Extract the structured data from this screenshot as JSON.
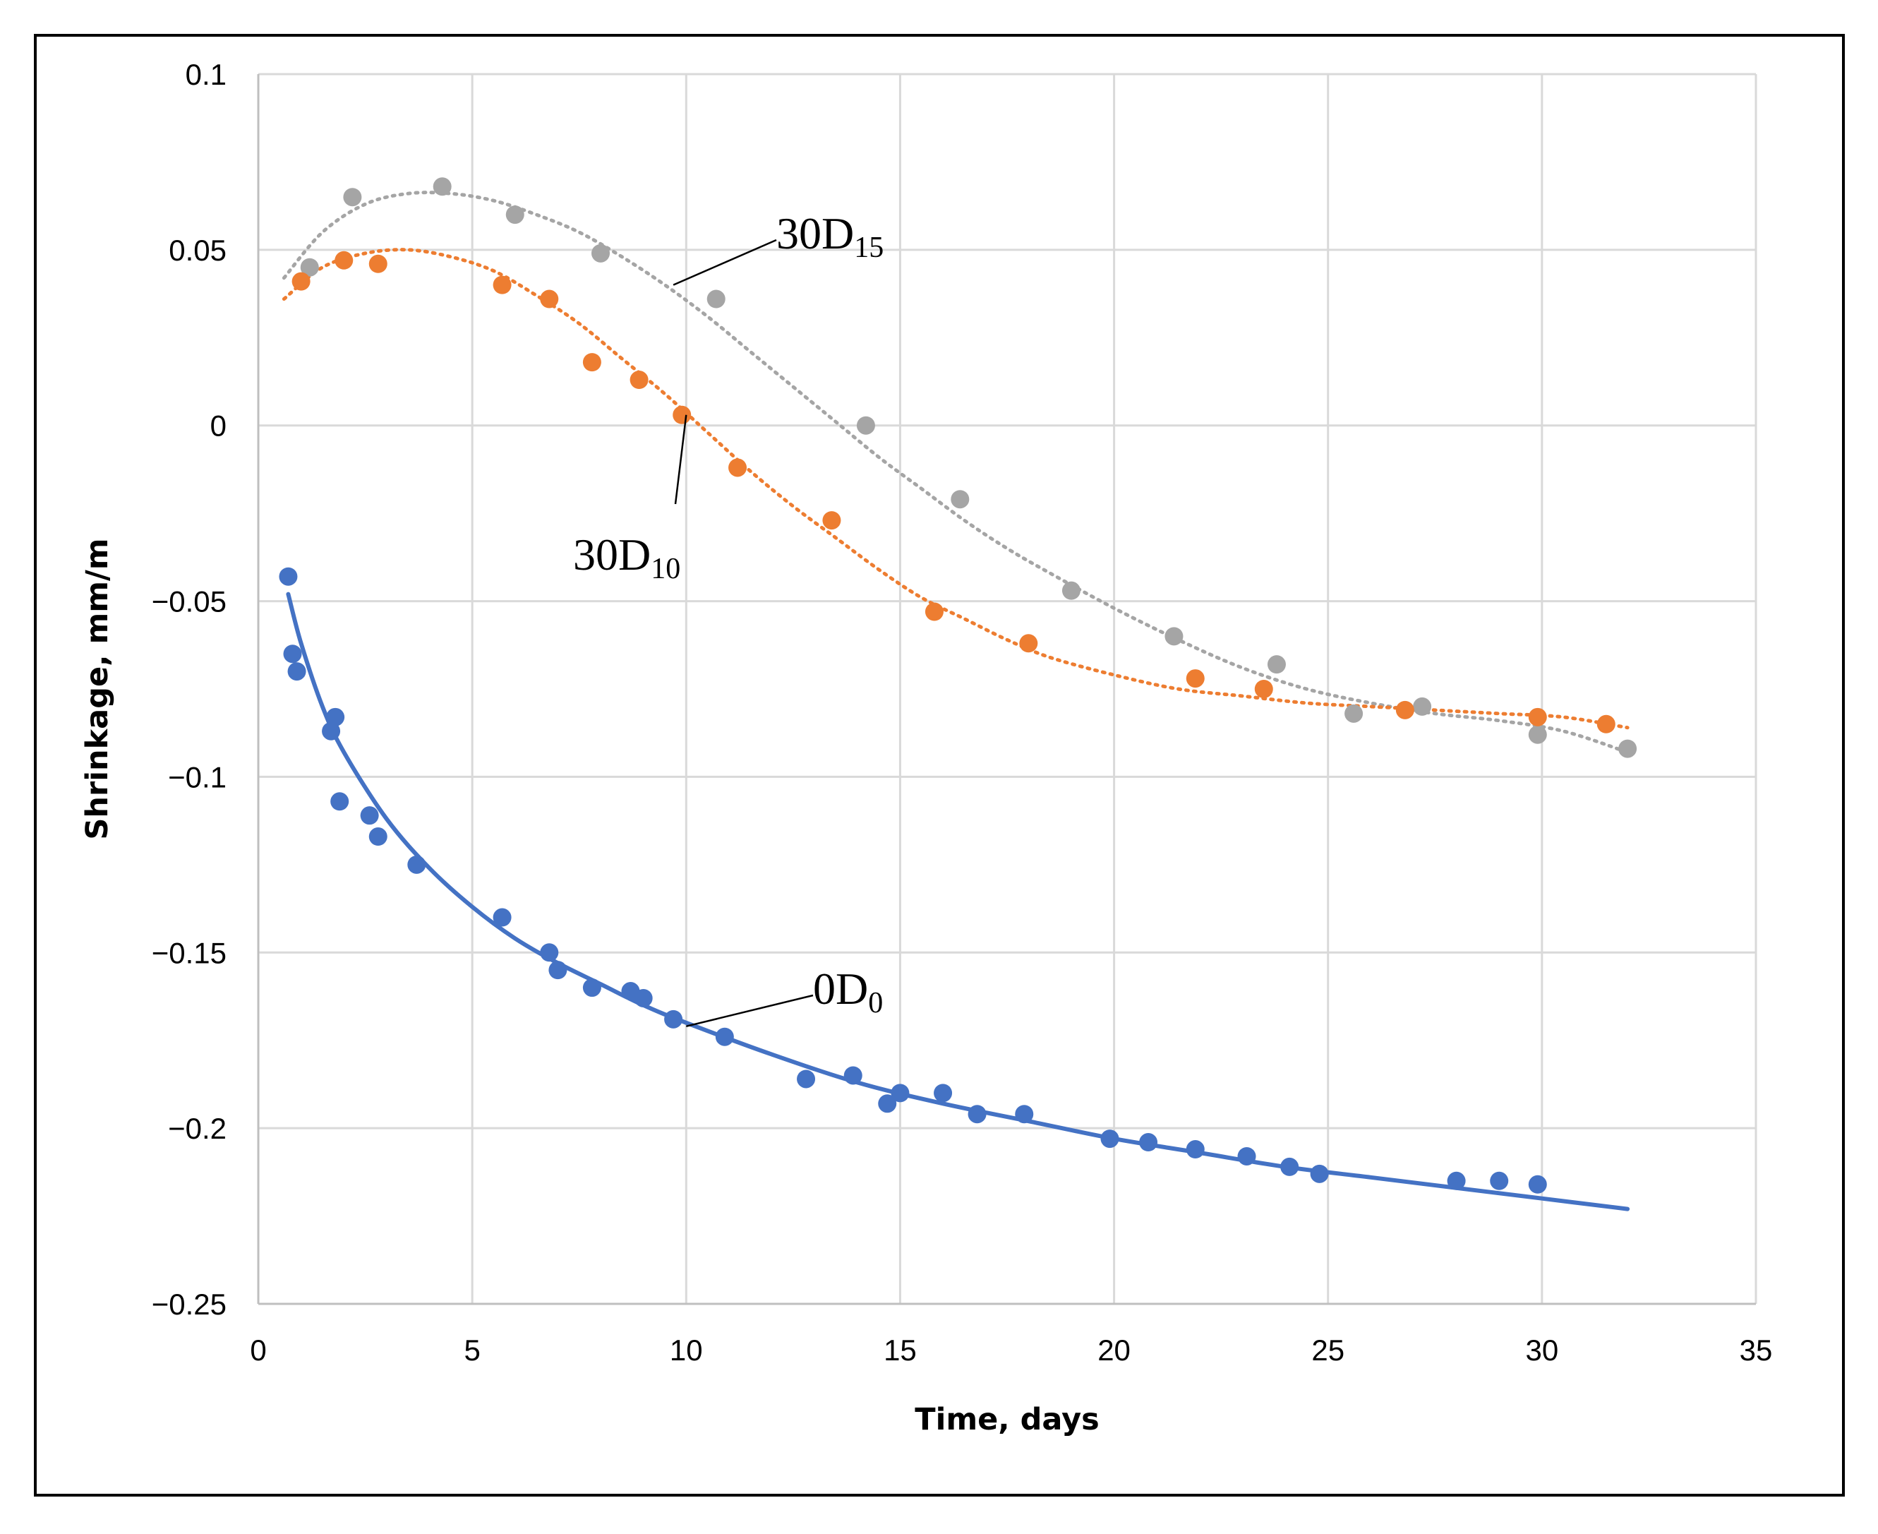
{
  "chart_data": {
    "type": "scatter",
    "title": "",
    "xlabel": "Time, days",
    "ylabel": "Shrinkage, mm/m",
    "xlim": [
      0,
      35
    ],
    "ylim": [
      -0.25,
      0.1
    ],
    "x_ticks": [
      {
        "value": 0,
        "label": "0"
      },
      {
        "value": 5,
        "label": "5"
      },
      {
        "value": 10,
        "label": "10"
      },
      {
        "value": 15,
        "label": "15"
      },
      {
        "value": 20,
        "label": "20"
      },
      {
        "value": 25,
        "label": "25"
      },
      {
        "value": 30,
        "label": "30"
      },
      {
        "value": 35,
        "label": "35"
      }
    ],
    "y_ticks": [
      {
        "value": 0.1,
        "label": "0.1"
      },
      {
        "value": 0.05,
        "label": "0.05"
      },
      {
        "value": 0,
        "label": "0"
      },
      {
        "value": -0.05,
        "label": "−0.05"
      },
      {
        "value": -0.1,
        "label": "−0.1"
      },
      {
        "value": -0.15,
        "label": "−0.15"
      },
      {
        "value": -0.2,
        "label": "−0.2"
      },
      {
        "value": -0.25,
        "label": "−0.25"
      }
    ],
    "grid": true,
    "legend": "none",
    "series": [
      {
        "name": "0D0",
        "label_main": "0D",
        "label_sub": "0",
        "color": "#4472c4",
        "trendline": "solid",
        "x": [
          0.7,
          0.8,
          0.9,
          1.7,
          1.8,
          1.9,
          2.6,
          2.8,
          3.7,
          5.7,
          6.8,
          7.0,
          7.8,
          8.7,
          9.0,
          9.7,
          10.9,
          12.8,
          13.9,
          14.7,
          15.0,
          16.0,
          16.8,
          17.9,
          19.9,
          20.8,
          21.9,
          23.1,
          24.1,
          24.8,
          28.0,
          29.0,
          29.9
        ],
        "y": [
          -0.043,
          -0.065,
          -0.07,
          -0.087,
          -0.083,
          -0.107,
          -0.111,
          -0.117,
          -0.125,
          -0.14,
          -0.15,
          -0.155,
          -0.16,
          -0.161,
          -0.163,
          -0.169,
          -0.174,
          -0.186,
          -0.185,
          -0.193,
          -0.19,
          -0.19,
          -0.196,
          -0.196,
          -0.203,
          -0.204,
          -0.206,
          -0.208,
          -0.211,
          -0.213,
          -0.215,
          -0.215,
          -0.216
        ],
        "trend_x": [
          0.7,
          1.0,
          1.5,
          2.0,
          3.0,
          4.0,
          5.0,
          6.0,
          7.0,
          8.0,
          9.0,
          10.0,
          12.0,
          14.0,
          16.0,
          18.0,
          20.0,
          22.0,
          24.0,
          26.0,
          28.0,
          30.0,
          32.0
        ],
        "trend_y": [
          -0.048,
          -0.062,
          -0.08,
          -0.093,
          -0.112,
          -0.126,
          -0.137,
          -0.146,
          -0.153,
          -0.159,
          -0.165,
          -0.17,
          -0.179,
          -0.187,
          -0.193,
          -0.198,
          -0.203,
          -0.207,
          -0.211,
          -0.214,
          -0.217,
          -0.22,
          -0.223
        ]
      },
      {
        "name": "30D10",
        "label_main": "30D",
        "label_sub": "10",
        "color": "#ed7d31",
        "trendline": "dotted",
        "x": [
          1.0,
          2.0,
          2.8,
          5.7,
          6.8,
          7.8,
          8.9,
          9.9,
          11.2,
          13.4,
          15.8,
          18.0,
          21.9,
          23.5,
          26.8,
          29.9,
          31.5
        ],
        "y": [
          0.041,
          0.047,
          0.046,
          0.04,
          0.036,
          0.018,
          0.013,
          0.003,
          -0.012,
          -0.027,
          -0.053,
          -0.062,
          -0.072,
          -0.075,
          -0.081,
          -0.083,
          -0.085
        ],
        "trend_x": [
          0.6,
          1.5,
          2.5,
          3.5,
          4.5,
          5.5,
          6.5,
          7.5,
          8.5,
          9.5,
          10.5,
          11.5,
          12.5,
          13.5,
          14.5,
          15.5,
          16.5,
          17.5,
          18.5,
          20.0,
          21.5,
          23.0,
          24.5,
          26.0,
          27.5,
          29.0,
          30.5,
          32.0
        ],
        "trend_y": [
          0.036,
          0.045,
          0.049,
          0.05,
          0.048,
          0.044,
          0.037,
          0.029,
          0.019,
          0.009,
          -0.002,
          -0.013,
          -0.023,
          -0.032,
          -0.041,
          -0.049,
          -0.055,
          -0.061,
          -0.066,
          -0.071,
          -0.075,
          -0.077,
          -0.079,
          -0.08,
          -0.081,
          -0.082,
          -0.083,
          -0.086
        ]
      },
      {
        "name": "30D15",
        "label_main": "30D",
        "label_sub": "15",
        "color": "#a5a5a5",
        "trendline": "dotted",
        "x": [
          1.2,
          2.2,
          4.3,
          6.0,
          8.0,
          10.7,
          14.2,
          16.4,
          19.0,
          21.4,
          23.8,
          25.6,
          27.2,
          29.9,
          32.0
        ],
        "y": [
          0.045,
          0.065,
          0.068,
          0.06,
          0.049,
          0.036,
          0.0,
          -0.021,
          -0.047,
          -0.06,
          -0.068,
          -0.082,
          -0.08,
          -0.088,
          -0.092
        ],
        "trend_x": [
          0.6,
          1.5,
          2.5,
          3.5,
          4.5,
          5.5,
          6.5,
          7.5,
          8.5,
          9.5,
          10.5,
          11.5,
          12.5,
          13.5,
          14.5,
          15.5,
          16.5,
          17.5,
          18.5,
          20.0,
          21.5,
          23.0,
          24.5,
          26.0,
          27.5,
          29.0,
          30.5,
          32.0
        ],
        "trend_y": [
          0.042,
          0.055,
          0.063,
          0.066,
          0.066,
          0.064,
          0.06,
          0.055,
          0.048,
          0.04,
          0.031,
          0.021,
          0.011,
          0.001,
          -0.009,
          -0.018,
          -0.027,
          -0.035,
          -0.042,
          -0.052,
          -0.061,
          -0.069,
          -0.075,
          -0.079,
          -0.082,
          -0.084,
          -0.087,
          -0.093
        ]
      }
    ],
    "annotations": [
      {
        "series": "30D15",
        "anchor_x": 9.7,
        "anchor_y": 0.04
      },
      {
        "series": "30D10",
        "anchor_x": 10.0,
        "anchor_y": 0.003
      },
      {
        "series": "0D0",
        "anchor_x": 10.0,
        "anchor_y": -0.171
      }
    ]
  }
}
